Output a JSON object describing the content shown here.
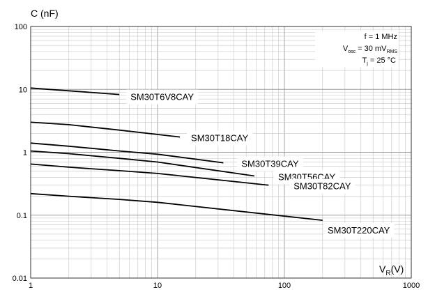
{
  "chart_data": {
    "type": "line",
    "x_scale": "log",
    "y_scale": "log",
    "xlim": [
      1,
      1000
    ],
    "ylim": [
      0.01,
      100
    ],
    "grid": true,
    "x_ticks": [
      "1",
      "10",
      "100",
      "1000"
    ],
    "y_ticks": [
      "100",
      "10",
      "1",
      "0.1",
      "0.01"
    ],
    "y_axis_label": "C (nF)",
    "x_axis_label": {
      "main": "V",
      "sub": "R",
      "unit": "(V)"
    },
    "conditions": {
      "freq": "f = 1 MHz",
      "vosc_main": "V",
      "vosc_sub": "osc",
      "vosc_value": " = 30 mV",
      "vosc_unit_sub": "RMS",
      "tj_main": "T",
      "tj_sub": "j",
      "tj_value": " = 25 °C"
    },
    "series": [
      {
        "name": "SM30T6V8CAY",
        "x": [
          1,
          2,
          5
        ],
        "y": [
          10.5,
          9.5,
          8.3
        ]
      },
      {
        "name": "SM30T18CAY",
        "x": [
          1,
          2,
          5,
          15
        ],
        "y": [
          3.0,
          2.75,
          2.25,
          1.75
        ]
      },
      {
        "name": "SM30T39CAY",
        "x": [
          1,
          2,
          5,
          10,
          33
        ],
        "y": [
          1.4,
          1.25,
          1.05,
          0.93,
          0.68
        ]
      },
      {
        "name": "SM30T56CAY",
        "x": [
          1,
          2,
          5,
          10,
          58
        ],
        "y": [
          1.05,
          0.95,
          0.8,
          0.7,
          0.42
        ]
      },
      {
        "name": "SM30T82CAY",
        "x": [
          1,
          2,
          5,
          10,
          75
        ],
        "y": [
          0.65,
          0.58,
          0.51,
          0.46,
          0.3
        ]
      },
      {
        "name": "SM30T220CAY",
        "x": [
          1,
          2,
          5,
          10,
          200
        ],
        "y": [
          0.22,
          0.2,
          0.178,
          0.16,
          0.083
        ]
      }
    ],
    "label_positions": [
      "right",
      "right",
      "right",
      "right",
      "right",
      "right"
    ]
  }
}
